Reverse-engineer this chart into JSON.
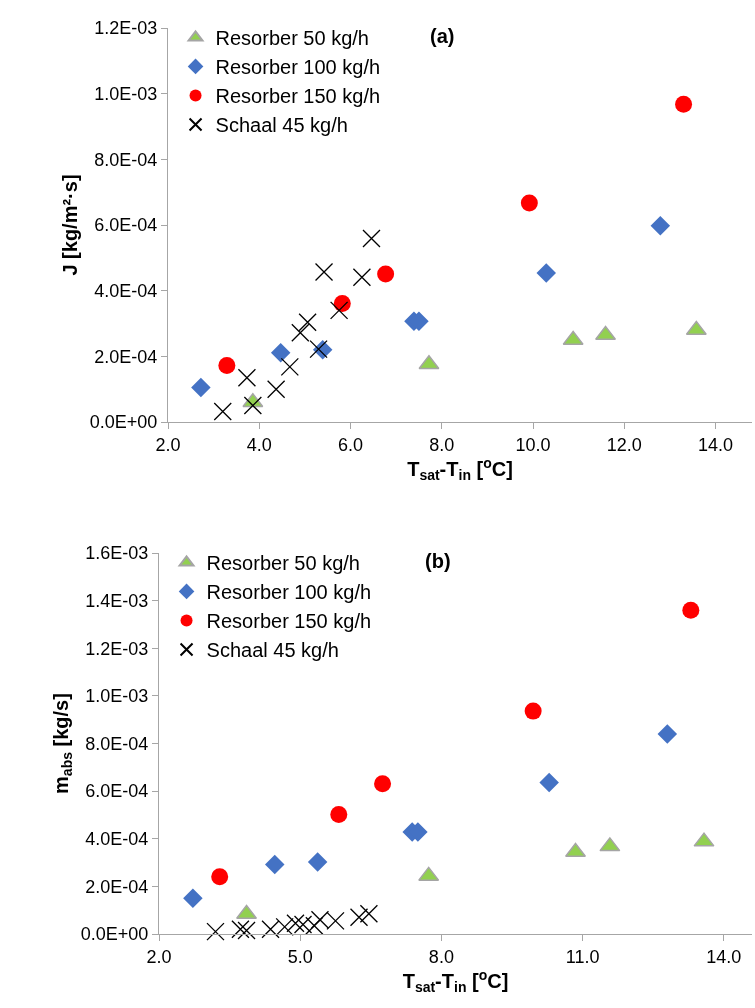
{
  "chart_data": [
    {
      "type": "scatter",
      "title": "(a)",
      "xlabel": "T$_{sat}$-T$_{in}$ [$^{o}$C]",
      "ylabel": "J [kg/m²·s]",
      "xlim": [
        2,
        14.8
      ],
      "xticks": [
        {
          "value": 2,
          "label": "2.0"
        },
        {
          "value": 4,
          "label": "4.0"
        },
        {
          "value": 6,
          "label": "6.0"
        },
        {
          "value": 8,
          "label": "8.0"
        },
        {
          "value": 10,
          "label": "10.0"
        },
        {
          "value": 12,
          "label": "12.0"
        },
        {
          "value": 14,
          "label": "14.0"
        }
      ],
      "ylim": [
        0,
        0.0012
      ],
      "yticks": [
        {
          "value": 0,
          "label": "0.0E+00"
        },
        {
          "value": 0.0002,
          "label": "2.0E-04"
        },
        {
          "value": 0.0004,
          "label": "4.0E-04"
        },
        {
          "value": 0.0006,
          "label": "6.0E-04"
        },
        {
          "value": 0.0008,
          "label": "8.0E-04"
        },
        {
          "value": 0.001,
          "label": "1.0E-03"
        },
        {
          "value": 0.0012,
          "label": "1.2E-03"
        }
      ],
      "legend": "top left",
      "series": [
        {
          "name": "Resorber 50 kg/h",
          "color": "#92d050",
          "marker": "triangle",
          "x": [
            3.86,
            7.72,
            10.88,
            11.59,
            13.58
          ],
          "values": [
            6e-05,
            0.000176,
            0.00025,
            0.000265,
            0.00028
          ]
        },
        {
          "name": "Resorber 100 kg/h",
          "color": "#4472c4",
          "marker": "diamond",
          "x": [
            2.72,
            4.47,
            5.39,
            7.39,
            7.5,
            10.29,
            12.79
          ],
          "values": [
            0.000105,
            0.000211,
            0.00022,
            0.000307,
            0.000307,
            0.000454,
            0.000598
          ]
        },
        {
          "name": "Resorber 150 kg/h",
          "color": "#ff0000",
          "marker": "circle",
          "x": [
            3.29,
            5.82,
            6.77,
            9.92,
            13.3
          ],
          "values": [
            0.000172,
            0.000361,
            0.000451,
            0.000667,
            0.000968
          ]
        },
        {
          "name": "Schaal 45 kg/h",
          "color": "#000000",
          "marker": "cross",
          "x": [
            3.2,
            3.73,
            3.86,
            4.37,
            4.67,
            4.9,
            5.06,
            5.3,
            5.42,
            5.75,
            6.25,
            6.46
          ],
          "values": [
            3.2e-05,
            0.000135,
            5e-05,
            0.0001,
            0.000168,
            0.000272,
            0.000304,
            0.000222,
            0.000457,
            0.00034,
            0.000441,
            0.000559
          ]
        }
      ]
    },
    {
      "type": "scatter",
      "title": "(b)",
      "xlabel": "T$_{sat}$-T$_{in}$ [$^{o}$C]",
      "ylabel": "m$_{abs}$ [kg/s]",
      "xlim": [
        2,
        14.6
      ],
      "xticks": [
        {
          "value": 2,
          "label": "2.0"
        },
        {
          "value": 5,
          "label": "5.0"
        },
        {
          "value": 8,
          "label": "8.0"
        },
        {
          "value": 11,
          "label": "11.0"
        },
        {
          "value": 14,
          "label": "14.0"
        }
      ],
      "ylim": [
        0,
        0.0016
      ],
      "yticks": [
        {
          "value": 0,
          "label": "0.0E+00"
        },
        {
          "value": 0.0002,
          "label": "2.0E-04"
        },
        {
          "value": 0.0004,
          "label": "4.0E-04"
        },
        {
          "value": 0.0006,
          "label": "6.0E-04"
        },
        {
          "value": 0.0008,
          "label": "8.0E-04"
        },
        {
          "value": 0.001,
          "label": "1.0E-03"
        },
        {
          "value": 0.0012,
          "label": "1.2E-03"
        },
        {
          "value": 0.0014,
          "label": "1.4E-03"
        },
        {
          "value": 0.0016,
          "label": "1.6E-03"
        }
      ],
      "legend": "top left",
      "series": [
        {
          "name": "Resorber 50 kg/h",
          "color": "#92d050",
          "marker": "triangle",
          "x": [
            3.86,
            7.73,
            10.85,
            11.58,
            13.58
          ],
          "values": [
            8.4e-05,
            0.000244,
            0.000344,
            0.000368,
            0.000388
          ]
        },
        {
          "name": "Resorber 100 kg/h",
          "color": "#4472c4",
          "marker": "diamond",
          "x": [
            2.72,
            4.46,
            5.37,
            7.38,
            7.5,
            10.29,
            12.8
          ],
          "values": [
            0.00015,
            0.000292,
            0.000302,
            0.000428,
            0.000428,
            0.000636,
            0.00084
          ]
        },
        {
          "name": "Resorber 150 kg/h",
          "color": "#ff0000",
          "marker": "circle",
          "x": [
            3.29,
            5.82,
            6.75,
            9.95,
            13.3
          ],
          "values": [
            0.00024,
            0.000502,
            0.000631,
            0.000936,
            0.00136
          ]
        },
        {
          "name": "Schaal 45 kg/h",
          "color": "#000000",
          "marker": "cross",
          "x": [
            3.2,
            3.73,
            3.86,
            4.37,
            4.67,
            4.9,
            5.06,
            5.3,
            5.42,
            5.75,
            6.25,
            6.46
          ],
          "values": [
            1e-05,
            2e-05,
            1.5e-05,
            2e-05,
            3e-05,
            4.5e-05,
            4e-05,
            3.5e-05,
            6e-05,
            5.5e-05,
            7e-05,
            8.5e-05
          ]
        }
      ]
    }
  ]
}
